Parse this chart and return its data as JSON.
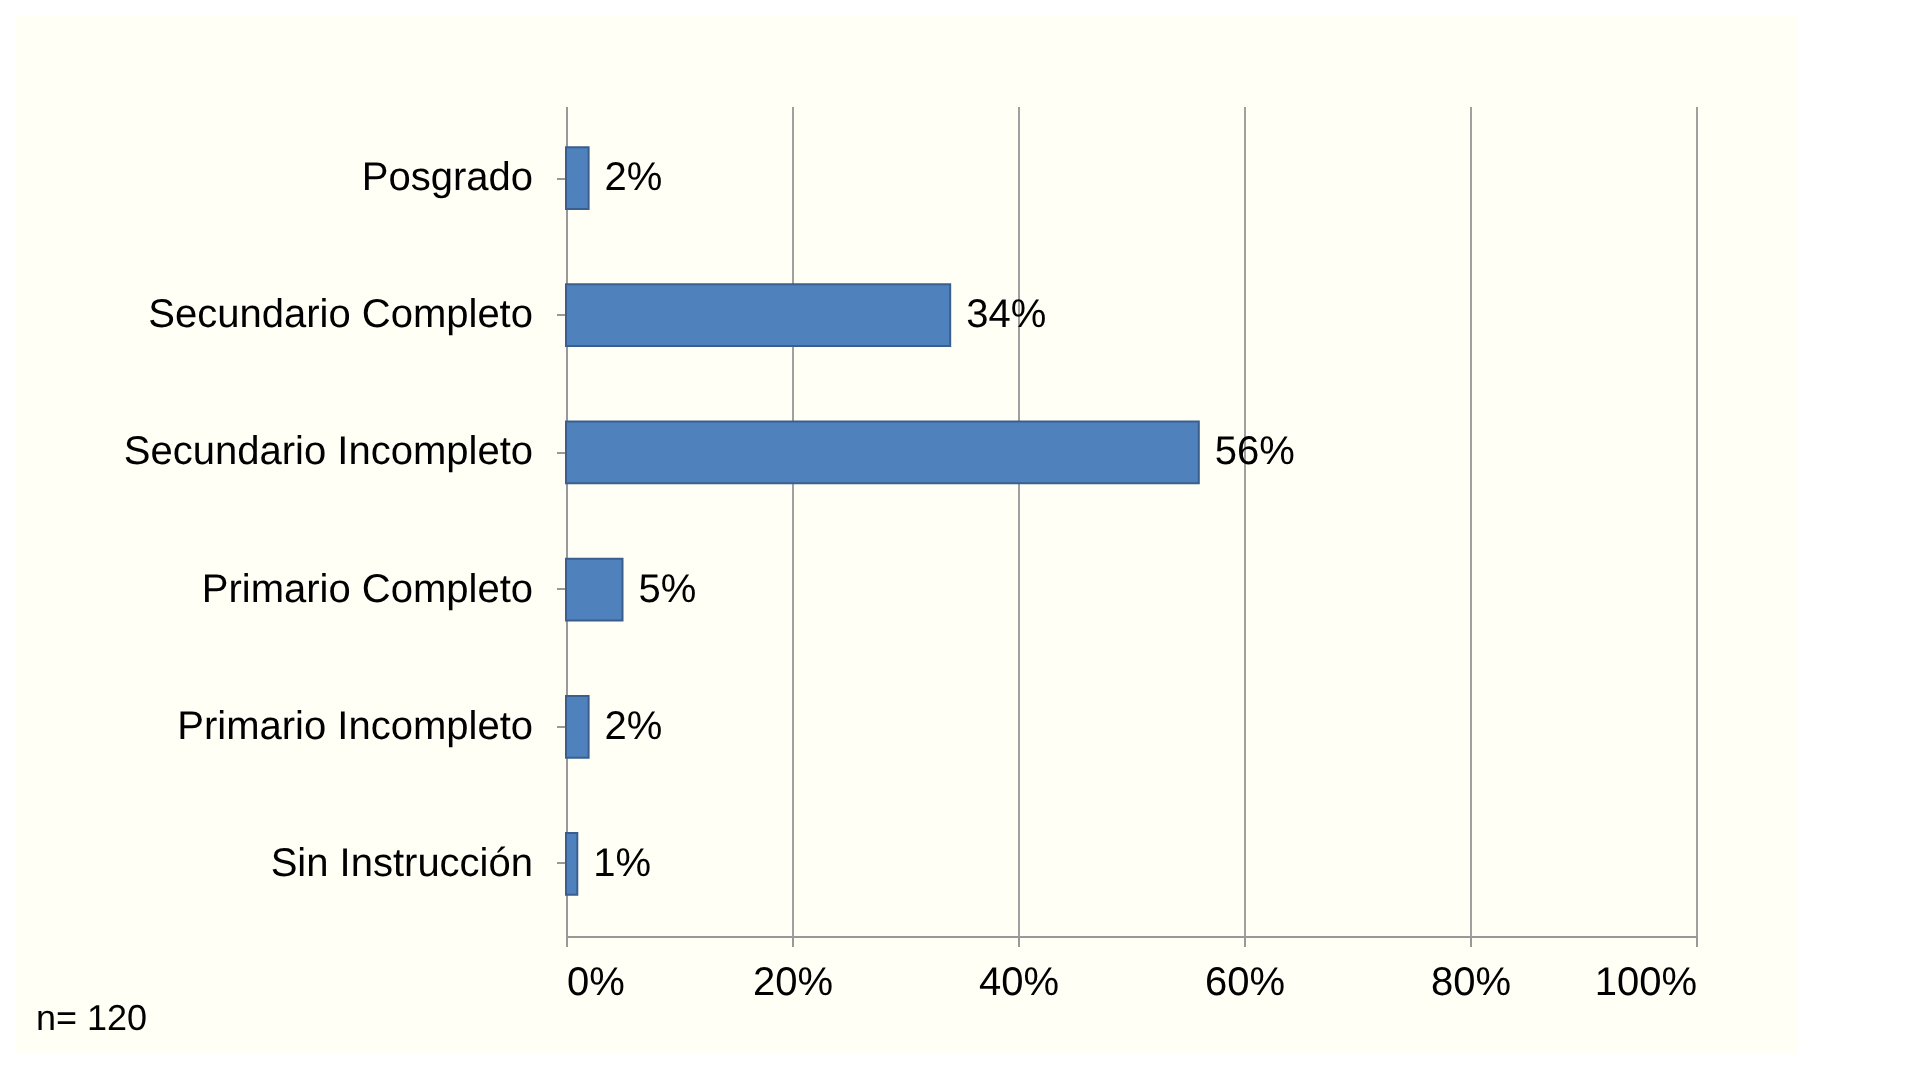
{
  "chart_data": {
    "type": "bar",
    "orientation": "horizontal",
    "categories": [
      "Posgrado",
      "Secundario Completo",
      "Secundario Incompleto",
      "Primario Completo",
      "Primario Incompleto",
      "Sin Instrucción"
    ],
    "values": [
      2,
      34,
      56,
      5,
      2,
      1
    ],
    "value_labels": [
      "2%",
      "34%",
      "56%",
      "5%",
      "2%",
      "1%"
    ],
    "color": "#4f81bd",
    "xlim": [
      0,
      100
    ],
    "xticks": [
      {
        "value": 0,
        "label": "0%"
      },
      {
        "value": 20,
        "label": "20%"
      },
      {
        "value": 40,
        "label": "40%"
      },
      {
        "value": 60,
        "label": "60%"
      },
      {
        "value": 80,
        "label": "80%"
      },
      {
        "value": 100,
        "label": "100%"
      }
    ],
    "grid": "x",
    "annotations": [
      "n= 120"
    ]
  }
}
